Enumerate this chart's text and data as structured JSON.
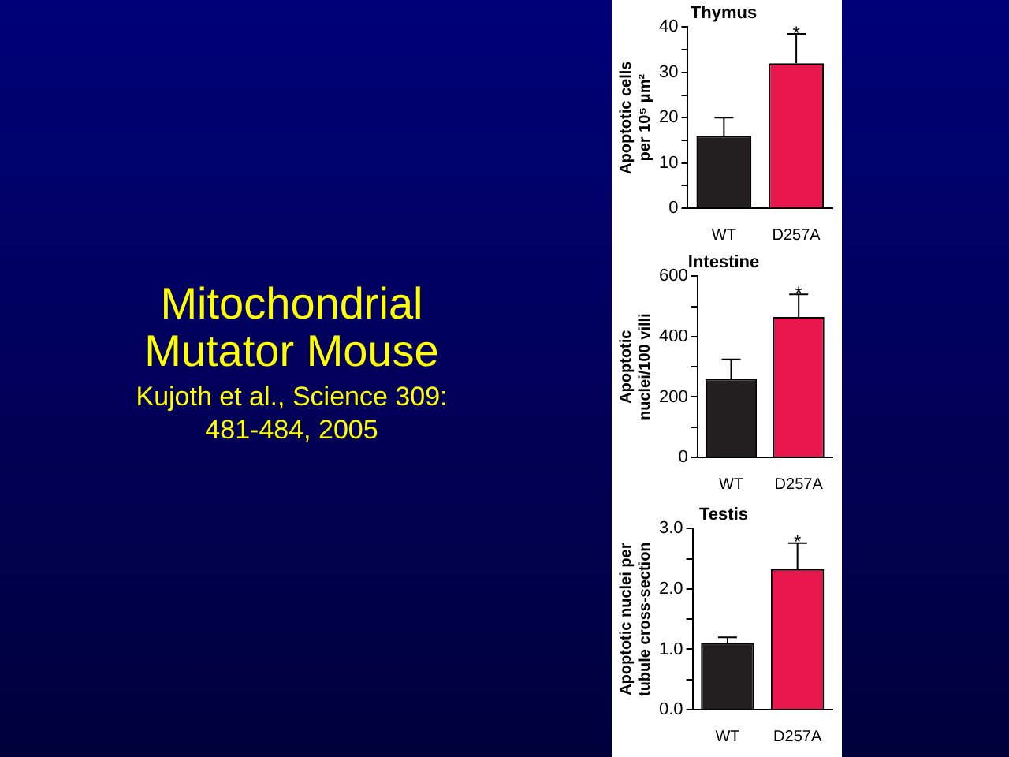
{
  "chart_data": [
    {
      "type": "other",
      "title": "Mitochondrial Mutator Mouse",
      "subtitle": "Kujoth et al., Science 309: 481-484, 2005"
    },
    {
      "type": "bar",
      "title": "Thymus",
      "ylabel": "Apoptotic cells per 10⁵ μm²",
      "categories": [
        "WT",
        "D257A"
      ],
      "values": [
        16,
        32
      ],
      "colors": [
        "#231f20",
        "#e8184f"
      ],
      "errors": [
        [
          16,
          20
        ],
        [
          32,
          38.5
        ]
      ],
      "ylim": [
        0,
        40
      ],
      "yticks": [
        0,
        {
          "value": 5,
          "label": null
        },
        10,
        {
          "value": 15,
          "label": null
        },
        20,
        {
          "value": 25,
          "label": null
        },
        30,
        {
          "value": 35,
          "label": null
        },
        40
      ],
      "annotations": [
        {
          "text": "*",
          "x": "D257A",
          "y": 39.5
        }
      ]
    },
    {
      "type": "bar",
      "title": "Intestine",
      "ylabel": "Apoptotic nuclei/100 villi",
      "categories": [
        "WT",
        "D257A"
      ],
      "values": [
        260,
        465
      ],
      "colors": [
        "#231f20",
        "#e8184f"
      ],
      "errors": [
        [
          260,
          325
        ],
        [
          465,
          540
        ]
      ],
      "ylim": [
        0,
        600
      ],
      "yticks": [
        0,
        {
          "value": 100,
          "label": null
        },
        200,
        {
          "value": 300,
          "label": null
        },
        400,
        {
          "value": 500,
          "label": null
        },
        600
      ],
      "annotations": [
        {
          "text": "*",
          "x": "D257A",
          "y": 555
        }
      ]
    },
    {
      "type": "bar",
      "title": "Testis",
      "ylabel": "Apoptotic nuclei per tubule cross-section",
      "categories": [
        "WT",
        "D257A"
      ],
      "values": [
        1.1,
        2.33
      ],
      "colors": [
        "#231f20",
        "#e8184f"
      ],
      "errors": [
        [
          1.1,
          1.2
        ],
        [
          2.33,
          2.76
        ]
      ],
      "ylim": [
        0,
        3
      ],
      "yticks": [
        {
          "value": 0,
          "label": "0.0"
        },
        {
          "value": 0.5,
          "label": null
        },
        {
          "value": 1,
          "label": "1.0"
        },
        {
          "value": 1.5,
          "label": null
        },
        {
          "value": 2,
          "label": "2.0"
        },
        {
          "value": 2.5,
          "label": null
        },
        {
          "value": 3,
          "label": "3.0"
        }
      ],
      "annotations": [
        {
          "text": "*",
          "x": "D257A",
          "y": 2.85
        }
      ]
    }
  ]
}
